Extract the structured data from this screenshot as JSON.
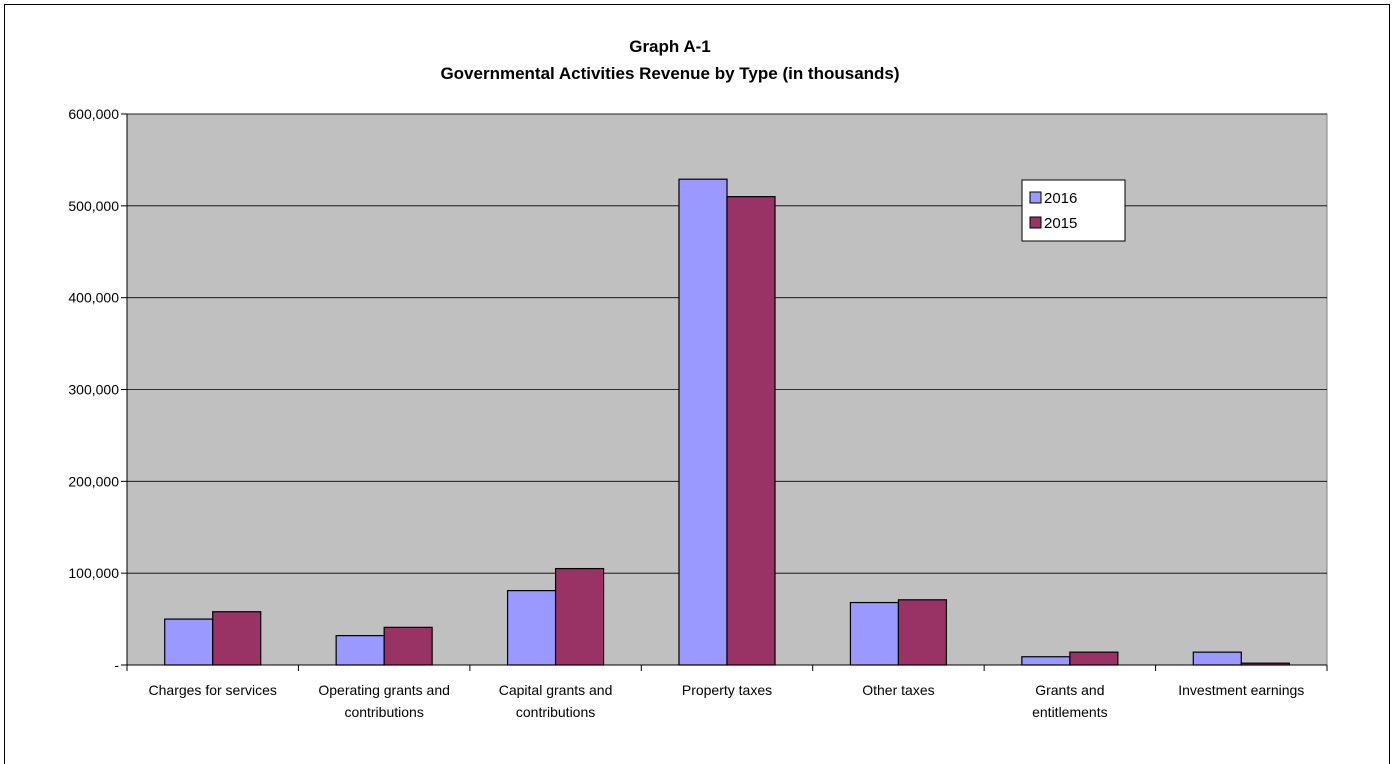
{
  "chart_data": {
    "type": "bar",
    "title": "Graph A-1",
    "subtitle": "Governmental Activities Revenue by Type (in thousands)",
    "xlabel": "",
    "ylabel": "",
    "categories": [
      [
        "Charges for services"
      ],
      [
        "Operating grants and",
        "contributions"
      ],
      [
        "Capital grants and",
        "contributions"
      ],
      [
        "Property taxes"
      ],
      [
        "Other taxes"
      ],
      [
        "Grants and",
        "entitlements"
      ],
      [
        "Investment earnings"
      ]
    ],
    "series": [
      {
        "name": "2016",
        "color": "#9999ff",
        "values": [
          50000,
          32000,
          81000,
          529000,
          68000,
          9000,
          14000
        ]
      },
      {
        "name": "2015",
        "color": "#993366",
        "values": [
          58000,
          41000,
          105000,
          510000,
          71000,
          14000,
          2000
        ]
      }
    ],
    "ylim": [
      0,
      600000
    ],
    "yticks": [
      0,
      100000,
      200000,
      300000,
      400000,
      500000,
      600000
    ],
    "ytick_labels": [
      "-",
      "100,000",
      "200,000",
      "300,000",
      "400,000",
      "500,000",
      "600,000"
    ],
    "grid": true,
    "plot_background": "#c0c0c0",
    "legend_position": "top-right"
  }
}
